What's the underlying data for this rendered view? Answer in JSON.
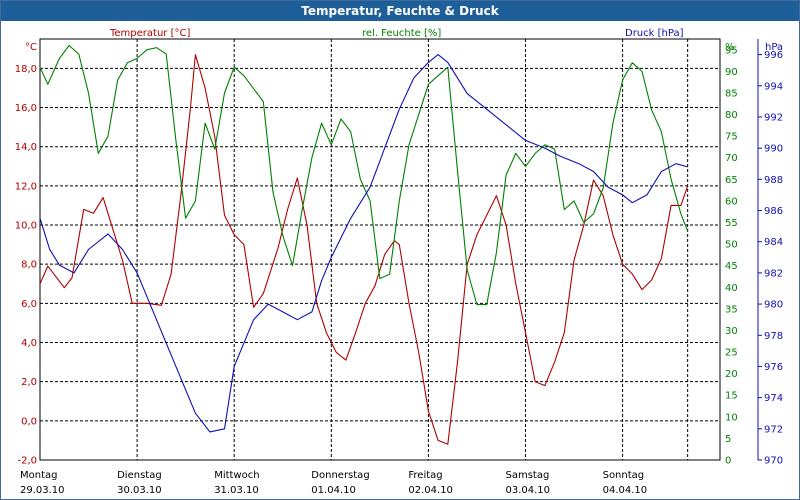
{
  "colors": {
    "temperature": "#b00000",
    "humidity": "#008000",
    "pressure": "#1010b0",
    "titlebar": "#1f5f99",
    "grid": "#000000"
  },
  "chart_data": {
    "type": "line",
    "title": "Temperatur, Feuchte & Druck",
    "grid": true,
    "x_axis": {
      "ticks": [
        {
          "day": "Montag",
          "date": "29.03.10"
        },
        {
          "day": "Dienstag",
          "date": "30.03.10"
        },
        {
          "day": "Mittwoch",
          "date": "31.03.10"
        },
        {
          "day": "Donnerstag",
          "date": "01.04.10"
        },
        {
          "day": "Freitag",
          "date": "02.04.10"
        },
        {
          "day": "Samstag",
          "date": "03.04.10"
        },
        {
          "day": "Sonntag",
          "date": "04.04.10"
        }
      ],
      "range": [
        0,
        7
      ]
    },
    "axes": {
      "temperature": {
        "label": "Temperatur [°C]",
        "unit": "°C",
        "range": [
          -2,
          19.5
        ],
        "ticks": [
          "-2,0",
          "0,0",
          "2,0",
          "4,0",
          "6,0",
          "8,0",
          "10,0",
          "12,0",
          "14,0",
          "16,0",
          "18,0"
        ]
      },
      "humidity": {
        "label": "rel. Feuchte [%]",
        "unit": "%",
        "range": [
          0,
          97.5
        ],
        "ticks": [
          "0",
          "5",
          "10",
          "15",
          "20",
          "25",
          "30",
          "35",
          "40",
          "45",
          "50",
          "55",
          "60",
          "65",
          "70",
          "75",
          "80",
          "85",
          "90",
          "95"
        ]
      },
      "pressure": {
        "label": "Druck [hPa]",
        "unit": "hPa",
        "range": [
          970,
          997
        ],
        "ticks": [
          "970",
          "972",
          "974",
          "976",
          "978",
          "980",
          "982",
          "984",
          "986",
          "988",
          "990",
          "992",
          "994",
          "996"
        ]
      }
    },
    "series": [
      {
        "name": "Temperatur [°C]",
        "axis": "temperature",
        "points": [
          [
            0,
            7.0
          ],
          [
            0.08,
            7.9
          ],
          [
            0.25,
            6.8
          ],
          [
            0.33,
            7.3
          ],
          [
            0.45,
            10.8
          ],
          [
            0.55,
            10.6
          ],
          [
            0.65,
            11.4
          ],
          [
            0.75,
            9.8
          ],
          [
            0.85,
            8.2
          ],
          [
            0.95,
            6.0
          ],
          [
            1.1,
            6.0
          ],
          [
            1.25,
            5.9
          ],
          [
            1.35,
            7.5
          ],
          [
            1.45,
            11.5
          ],
          [
            1.55,
            16.0
          ],
          [
            1.6,
            18.7
          ],
          [
            1.7,
            17.0
          ],
          [
            1.8,
            14.5
          ],
          [
            1.9,
            10.5
          ],
          [
            2.0,
            9.5
          ],
          [
            2.1,
            9.0
          ],
          [
            2.2,
            5.8
          ],
          [
            2.3,
            6.5
          ],
          [
            2.45,
            8.8
          ],
          [
            2.55,
            10.8
          ],
          [
            2.65,
            12.4
          ],
          [
            2.75,
            10.0
          ],
          [
            2.85,
            6.0
          ],
          [
            2.95,
            4.5
          ],
          [
            3.05,
            3.5
          ],
          [
            3.15,
            3.1
          ],
          [
            3.25,
            4.5
          ],
          [
            3.35,
            6.0
          ],
          [
            3.45,
            6.9
          ],
          [
            3.55,
            8.5
          ],
          [
            3.65,
            9.2
          ],
          [
            3.7,
            9.0
          ],
          [
            3.8,
            6.0
          ],
          [
            3.9,
            3.5
          ],
          [
            4.0,
            0.5
          ],
          [
            4.1,
            -1.0
          ],
          [
            4.2,
            -1.2
          ],
          [
            4.3,
            3.0
          ],
          [
            4.4,
            8.0
          ],
          [
            4.5,
            9.5
          ],
          [
            4.6,
            10.5
          ],
          [
            4.7,
            11.5
          ],
          [
            4.8,
            10.0
          ],
          [
            4.9,
            7.0
          ],
          [
            5.0,
            4.5
          ],
          [
            5.1,
            2.0
          ],
          [
            5.2,
            1.8
          ],
          [
            5.3,
            3.0
          ],
          [
            5.4,
            4.5
          ],
          [
            5.5,
            8.2
          ],
          [
            5.6,
            10.0
          ],
          [
            5.7,
            12.3
          ],
          [
            5.8,
            11.5
          ],
          [
            5.9,
            9.5
          ],
          [
            6.0,
            8.0
          ],
          [
            6.1,
            7.5
          ],
          [
            6.2,
            6.7
          ],
          [
            6.3,
            7.2
          ],
          [
            6.4,
            8.3
          ],
          [
            6.5,
            11.0
          ],
          [
            6.6,
            11.0
          ],
          [
            6.67,
            12.0
          ]
        ]
      },
      {
        "name": "rel. Feuchte [%]",
        "axis": "humidity",
        "points": [
          [
            0,
            91
          ],
          [
            0.08,
            87
          ],
          [
            0.2,
            93
          ],
          [
            0.3,
            96
          ],
          [
            0.4,
            94
          ],
          [
            0.5,
            85
          ],
          [
            0.6,
            71
          ],
          [
            0.7,
            75
          ],
          [
            0.8,
            88
          ],
          [
            0.9,
            92
          ],
          [
            1.0,
            93
          ],
          [
            1.1,
            95
          ],
          [
            1.2,
            95.5
          ],
          [
            1.3,
            94
          ],
          [
            1.4,
            74
          ],
          [
            1.5,
            56
          ],
          [
            1.6,
            60
          ],
          [
            1.7,
            78
          ],
          [
            1.8,
            72
          ],
          [
            1.9,
            85
          ],
          [
            2.0,
            91
          ],
          [
            2.1,
            89
          ],
          [
            2.2,
            86
          ],
          [
            2.3,
            83
          ],
          [
            2.4,
            62
          ],
          [
            2.5,
            52
          ],
          [
            2.6,
            45
          ],
          [
            2.7,
            58
          ],
          [
            2.8,
            70
          ],
          [
            2.9,
            78
          ],
          [
            3.0,
            73
          ],
          [
            3.1,
            79
          ],
          [
            3.2,
            76
          ],
          [
            3.3,
            65
          ],
          [
            3.4,
            60
          ],
          [
            3.5,
            42
          ],
          [
            3.6,
            43
          ],
          [
            3.7,
            60
          ],
          [
            3.8,
            73
          ],
          [
            3.9,
            80
          ],
          [
            4.0,
            87
          ],
          [
            4.1,
            89
          ],
          [
            4.2,
            91
          ],
          [
            4.3,
            67
          ],
          [
            4.4,
            44
          ],
          [
            4.5,
            36
          ],
          [
            4.6,
            36
          ],
          [
            4.7,
            48
          ],
          [
            4.8,
            66
          ],
          [
            4.9,
            71
          ],
          [
            5.0,
            68
          ],
          [
            5.1,
            71
          ],
          [
            5.2,
            73
          ],
          [
            5.3,
            72
          ],
          [
            5.4,
            58
          ],
          [
            5.5,
            60
          ],
          [
            5.6,
            55
          ],
          [
            5.7,
            57
          ],
          [
            5.8,
            63
          ],
          [
            5.9,
            78
          ],
          [
            6.0,
            88
          ],
          [
            6.1,
            92
          ],
          [
            6.2,
            90
          ],
          [
            6.3,
            81
          ],
          [
            6.4,
            76
          ],
          [
            6.5,
            65
          ],
          [
            6.6,
            57
          ],
          [
            6.67,
            53
          ]
        ]
      },
      {
        "name": "Druck [hPa]",
        "axis": "pressure",
        "points": [
          [
            0,
            985.5
          ],
          [
            0.1,
            983.5
          ],
          [
            0.2,
            982.5
          ],
          [
            0.35,
            982.0
          ],
          [
            0.5,
            983.5
          ],
          [
            0.7,
            984.5
          ],
          [
            0.85,
            983.5
          ],
          [
            1.0,
            982.0
          ],
          [
            1.2,
            979.0
          ],
          [
            1.4,
            976.0
          ],
          [
            1.6,
            973.0
          ],
          [
            1.75,
            971.8
          ],
          [
            1.9,
            972.0
          ],
          [
            2.0,
            976.0
          ],
          [
            2.2,
            979.0
          ],
          [
            2.35,
            980.0
          ],
          [
            2.5,
            979.5
          ],
          [
            2.65,
            979.0
          ],
          [
            2.8,
            979.5
          ],
          [
            2.9,
            981.5
          ],
          [
            3.0,
            983.0
          ],
          [
            3.2,
            985.5
          ],
          [
            3.4,
            987.5
          ],
          [
            3.55,
            990.0
          ],
          [
            3.7,
            992.5
          ],
          [
            3.85,
            994.5
          ],
          [
            4.0,
            995.5
          ],
          [
            4.1,
            996.0
          ],
          [
            4.2,
            995.5
          ],
          [
            4.4,
            993.5
          ],
          [
            4.6,
            992.5
          ],
          [
            4.8,
            991.5
          ],
          [
            5.0,
            990.5
          ],
          [
            5.2,
            990.0
          ],
          [
            5.35,
            989.5
          ],
          [
            5.55,
            989.0
          ],
          [
            5.7,
            988.5
          ],
          [
            5.85,
            987.5
          ],
          [
            6.0,
            987.0
          ],
          [
            6.1,
            986.5
          ],
          [
            6.25,
            987.0
          ],
          [
            6.4,
            988.5
          ],
          [
            6.55,
            989.0
          ],
          [
            6.67,
            988.8
          ]
        ]
      }
    ]
  }
}
